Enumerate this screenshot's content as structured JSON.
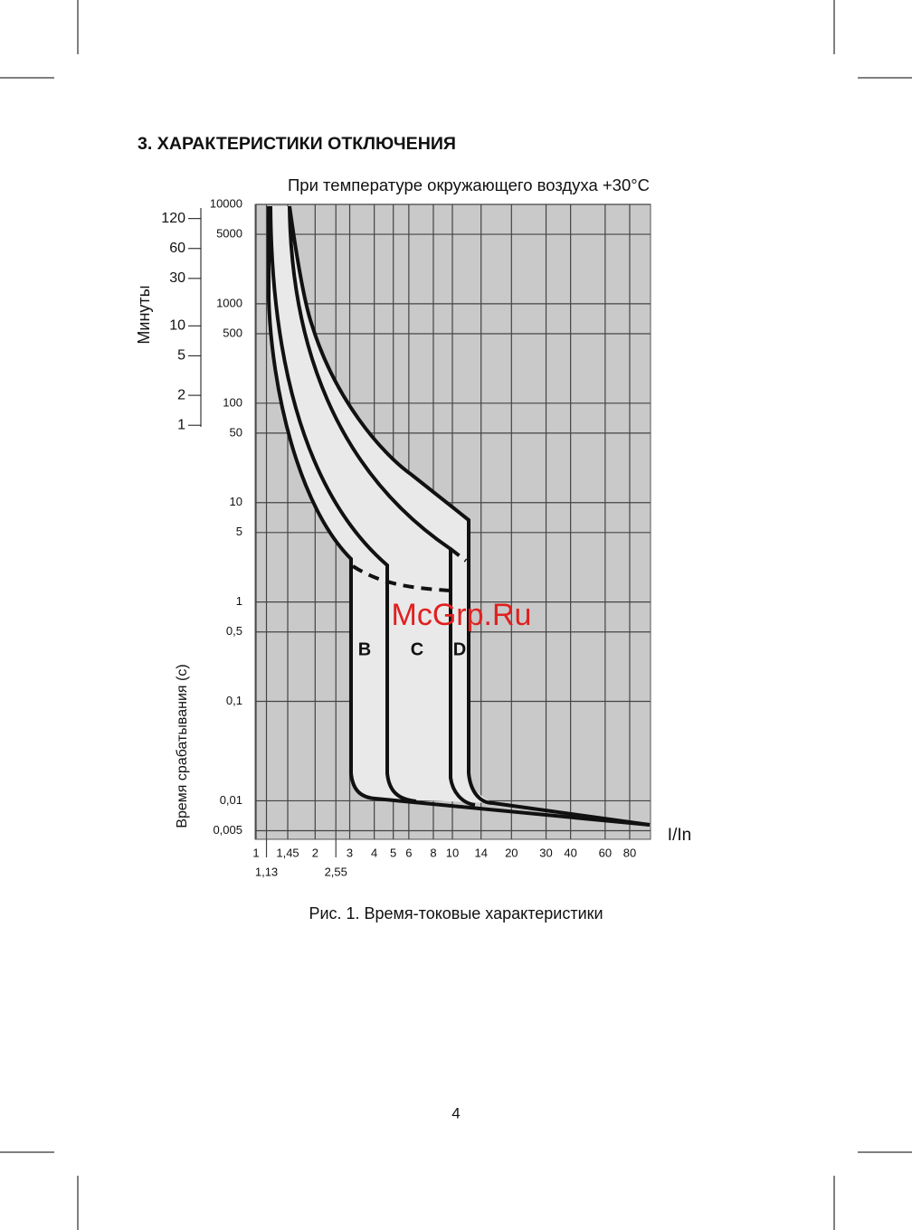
{
  "header": {
    "section_title": "3. ХАРАКТЕРИСТИКИ ОТКЛЮЧЕНИЯ"
  },
  "figure": {
    "subtitle": "При температуре окружающего воздуха +30°C",
    "xlabel": "I/In",
    "ylabel": "Время срабатывания (с)",
    "y2label": "Минуты",
    "xlim": [
      1,
      100
    ],
    "ylim": [
      0.0041,
      10000
    ],
    "log_x": true,
    "log_y": true,
    "grid": true,
    "xticks": [
      1,
      {
        "value": 1.45,
        "label": "1,45"
      },
      2,
      3,
      4,
      5,
      6,
      8,
      10,
      14,
      20,
      30,
      40,
      60,
      80
    ],
    "xticks_lower": [
      {
        "value": 1.13,
        "label": "1,13"
      },
      {
        "value": 2.55,
        "label": "2,55"
      }
    ],
    "yticks": [
      10000,
      5000,
      1000,
      500,
      100,
      50,
      10,
      5,
      1,
      {
        "value": 0.5,
        "label": "0,5"
      },
      {
        "value": 0.1,
        "label": "0,1"
      },
      {
        "value": 0.01,
        "label": "0,01"
      },
      {
        "value": 0.005,
        "label": "0,005"
      }
    ],
    "y2ticks": [
      120,
      60,
      30,
      10,
      5,
      2,
      1
    ],
    "curve_labels": [
      "B",
      "C",
      "D"
    ],
    "caption": "Рис. 1. Время-токовые характеристики"
  },
  "watermark": "McGrp.Ru",
  "footer": {
    "page_number": "4"
  }
}
